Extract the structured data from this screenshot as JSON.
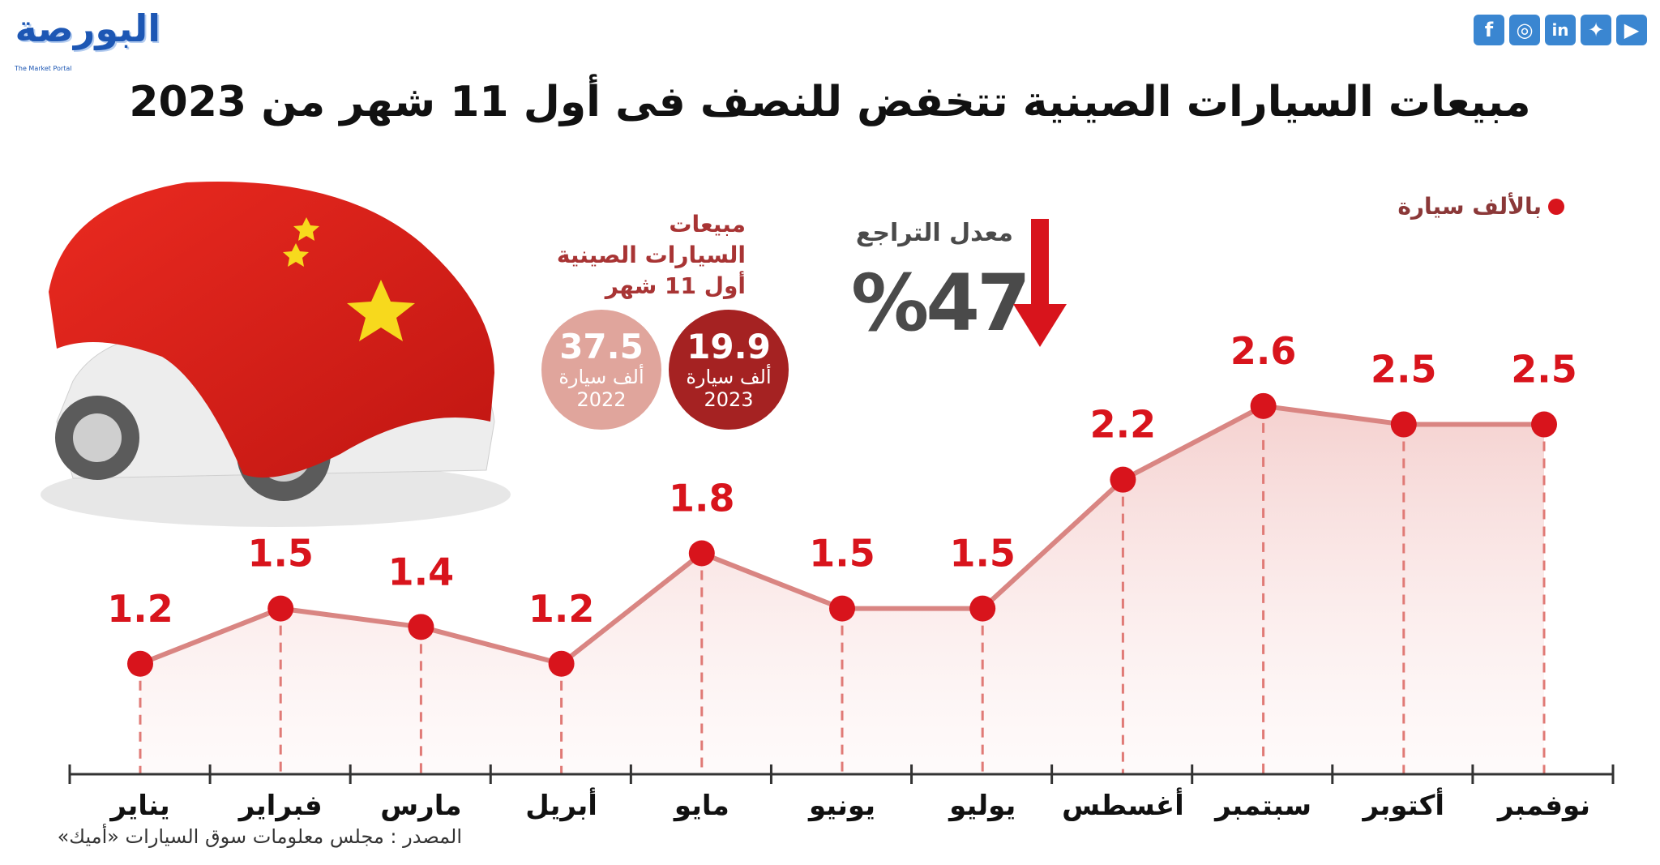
{
  "header": {
    "logo_text": "البورصة",
    "logo_subtitle": "The Market Portal",
    "social_icons": [
      "facebook-icon",
      "instagram-icon",
      "linkedin-icon",
      "twitter-icon",
      "youtube-icon"
    ],
    "title": "مبيعات السيارات الصينية تتخفض للنصف فى أول 11 شهر من 2023"
  },
  "annotations": {
    "unit_note": "بالألف سيارة",
    "decline_label": "معدل التراجع",
    "decline_value": "%47",
    "sales_heading": [
      "مبيعات",
      "السيارات الصينية",
      "أول 11 شهر"
    ],
    "year_2022": {
      "value": "37.5",
      "unit": "ألف سيارة",
      "year": "2022"
    },
    "year_2023": {
      "value": "19.9",
      "unit": "ألف سيارة",
      "year": "2023"
    }
  },
  "source": "المصدر : مجلس معلومات سوق السيارات «أميك»",
  "colors": {
    "accent_red": "#d8141c",
    "line": "#d98582",
    "fill": "#f7dcdb",
    "value_text": "#d8141c",
    "dark_red": "#a52222",
    "light_red": "#e0a59c"
  },
  "chart_data": {
    "type": "line",
    "title": "مبيعات السيارات الصينية تتخفض للنصف فى أول 11 شهر من 2023",
    "xlabel": "",
    "ylabel": "بالألف سيارة",
    "ylim": [
      0.6,
      3.0
    ],
    "grid": false,
    "categories": [
      "يناير",
      "فبراير",
      "مارس",
      "أبريل",
      "مايو",
      "يونيو",
      "يوليو",
      "أغسطس",
      "سبتمبر",
      "أكتوبر",
      "نوفمبر"
    ],
    "series": [
      {
        "values": [
          1.2,
          1.5,
          1.4,
          1.2,
          1.8,
          1.5,
          1.5,
          2.2,
          2.6,
          2.5,
          2.5
        ]
      }
    ],
    "value_labels": [
      "1.2",
      "1.5",
      "1.4",
      "1.2",
      "1.8",
      "1.5",
      "1.5",
      "2.2",
      "2.6",
      "2.5",
      "2.5"
    ]
  }
}
